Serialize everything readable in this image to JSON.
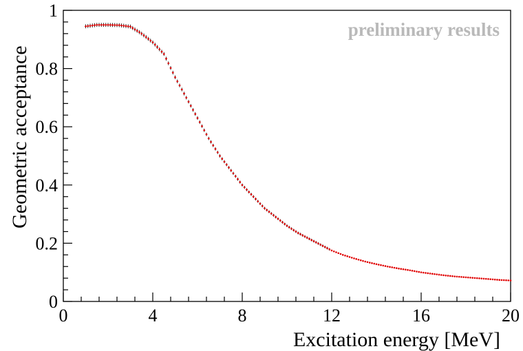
{
  "chart_data": {
    "type": "scatter",
    "title": "",
    "annotation": "preliminary results",
    "xlabel": "Excitation energy [MeV]",
    "ylabel": "Geometric acceptance",
    "xlim": [
      0,
      20
    ],
    "ylim": [
      0,
      1
    ],
    "x_ticks": [
      "0",
      "4",
      "8",
      "12",
      "16",
      "20"
    ],
    "y_ticks": [
      "0",
      "0.2",
      "0.4",
      "0.6",
      "0.8",
      "1"
    ],
    "grid": false,
    "marker_color": "#e00000",
    "errorbar_color": "#000000",
    "series": [
      {
        "x": [
          1.0,
          1.5,
          2.0,
          2.5,
          3.0,
          3.5,
          4.0,
          4.5,
          5.0,
          5.5,
          6.0,
          6.5,
          7.0,
          7.5,
          8.0,
          8.5,
          9.0,
          9.5,
          10.0,
          10.5,
          11.0,
          11.5,
          12.0,
          12.5,
          13.0,
          13.5,
          14.0,
          14.5,
          15.0,
          15.5,
          16.0,
          16.5,
          17.0,
          17.5,
          18.0,
          18.5,
          19.0,
          19.5,
          20.0
        ],
        "y": [
          0.945,
          0.95,
          0.95,
          0.949,
          0.944,
          0.92,
          0.89,
          0.85,
          0.77,
          0.7,
          0.63,
          0.56,
          0.5,
          0.45,
          0.4,
          0.36,
          0.32,
          0.29,
          0.26,
          0.235,
          0.215,
          0.195,
          0.175,
          0.16,
          0.148,
          0.137,
          0.128,
          0.12,
          0.113,
          0.107,
          0.1,
          0.095,
          0.09,
          0.086,
          0.083,
          0.08,
          0.077,
          0.074,
          0.072
        ]
      }
    ]
  }
}
